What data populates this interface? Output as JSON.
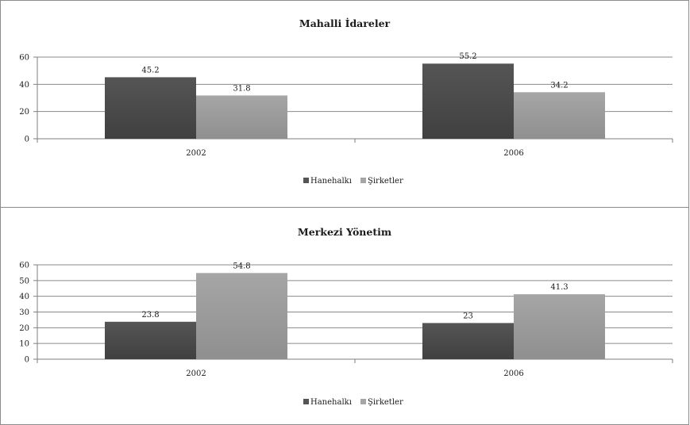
{
  "chart_data": [
    {
      "type": "bar",
      "title": "Mahalli İdareler",
      "categories": [
        "2002",
        "2006"
      ],
      "series": [
        {
          "name": "Hanehalkı",
          "values": [
            45.2,
            55.2
          ]
        },
        {
          "name": "Şirketler",
          "values": [
            31.8,
            34.2
          ]
        }
      ],
      "ylim": [
        0,
        60
      ],
      "yticks": [
        0,
        20,
        40,
        60
      ],
      "grid": true,
      "legend": "bottom",
      "colors": [
        "#555555",
        "#a6a6a6"
      ]
    },
    {
      "type": "bar",
      "title": "Merkezi Yönetim",
      "categories": [
        "2002",
        "2006"
      ],
      "series": [
        {
          "name": "Hanehalkı",
          "values": [
            23.8,
            23
          ]
        },
        {
          "name": "Şirketler",
          "values": [
            54.8,
            41.3
          ]
        }
      ],
      "ylim": [
        0,
        60
      ],
      "yticks": [
        0,
        10,
        20,
        30,
        40,
        50,
        60
      ],
      "grid": true,
      "legend": "bottom",
      "colors": [
        "#555555",
        "#a6a6a6"
      ]
    }
  ]
}
